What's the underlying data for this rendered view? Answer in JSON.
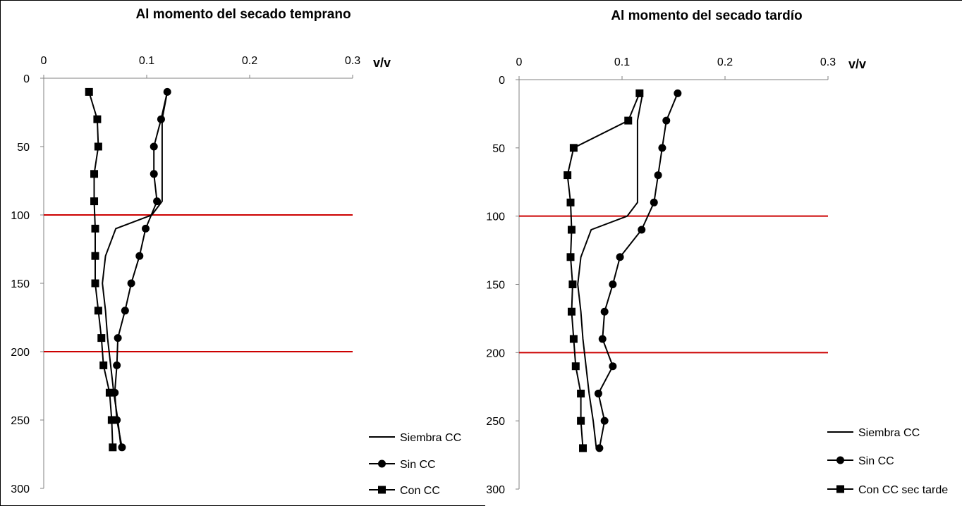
{
  "chart_data": [
    {
      "type": "line",
      "title": "Al momento del secado temprano",
      "x_unit_label": "v/v",
      "xlim": [
        0,
        0.3
      ],
      "ylim": [
        0,
        300
      ],
      "y_inverted": true,
      "x_ticks": [
        "0",
        "0.1",
        "0.2",
        "0.3"
      ],
      "y_ticks": [
        "0",
        "50",
        "100",
        "150",
        "200",
        "250",
        "300"
      ],
      "reference_lines_y": [
        100,
        200
      ],
      "reference_line_color": "#cc0000",
      "grid": false,
      "legend_position": "bottom-right",
      "series": [
        {
          "name": "Siembra CC",
          "marker": "none",
          "x": [
            0.12,
            0.115,
            0.115,
            0.115,
            0.115,
            0.105,
            0.07,
            0.06,
            0.057,
            0.06,
            0.062,
            0.065,
            0.068,
            0.072,
            0.075
          ],
          "y": [
            10,
            30,
            50,
            70,
            90,
            100,
            110,
            130,
            150,
            170,
            190,
            210,
            230,
            250,
            270
          ]
        },
        {
          "name": "Sin CC",
          "marker": "circle",
          "x": [
            0.12,
            0.114,
            0.107,
            0.107,
            0.11,
            0.099,
            0.093,
            0.085,
            0.079,
            0.072,
            0.071,
            0.069,
            0.071,
            0.076
          ],
          "y": [
            10,
            30,
            50,
            70,
            90,
            110,
            130,
            150,
            170,
            190,
            210,
            230,
            250,
            270
          ]
        },
        {
          "name": "Con CC",
          "marker": "square",
          "x": [
            0.044,
            0.052,
            0.053,
            0.049,
            0.049,
            0.05,
            0.05,
            0.05,
            0.053,
            0.056,
            0.058,
            0.064,
            0.066,
            0.067
          ],
          "y": [
            10,
            30,
            50,
            70,
            90,
            110,
            130,
            150,
            170,
            190,
            210,
            230,
            250,
            270
          ]
        }
      ]
    },
    {
      "type": "line",
      "title": "Al momento del secado tardío",
      "x_unit_label": "v/v",
      "xlim": [
        0,
        0.3
      ],
      "ylim": [
        0,
        300
      ],
      "y_inverted": true,
      "x_ticks": [
        "0",
        "0.1",
        "0.2",
        "0.3"
      ],
      "y_ticks": [
        "0",
        "50",
        "100",
        "150",
        "200",
        "250",
        "300"
      ],
      "reference_lines_y": [
        100,
        200
      ],
      "reference_line_color": "#cc0000",
      "grid": false,
      "legend_position": "bottom-right",
      "series": [
        {
          "name": "Siembra CC",
          "marker": "none",
          "x": [
            0.12,
            0.115,
            0.115,
            0.115,
            0.115,
            0.105,
            0.07,
            0.06,
            0.057,
            0.06,
            0.062,
            0.065,
            0.068,
            0.072,
            0.075
          ],
          "y": [
            10,
            30,
            50,
            70,
            90,
            100,
            110,
            130,
            150,
            170,
            190,
            210,
            230,
            250,
            270
          ]
        },
        {
          "name": "Sin CC",
          "marker": "circle",
          "x": [
            0.154,
            0.143,
            0.139,
            0.135,
            0.131,
            0.119,
            0.098,
            0.091,
            0.083,
            0.081,
            0.091,
            0.077,
            0.083,
            0.078
          ],
          "y": [
            10,
            30,
            50,
            70,
            90,
            110,
            130,
            150,
            170,
            190,
            210,
            230,
            250,
            270
          ]
        },
        {
          "name": "Con CC sec tarde",
          "marker": "square",
          "x": [
            0.117,
            0.106,
            0.053,
            0.047,
            0.05,
            0.051,
            0.05,
            0.052,
            0.051,
            0.053,
            0.055,
            0.06,
            0.06,
            0.062
          ],
          "y": [
            10,
            30,
            50,
            70,
            90,
            110,
            130,
            150,
            170,
            190,
            210,
            230,
            250,
            270
          ]
        }
      ]
    }
  ]
}
